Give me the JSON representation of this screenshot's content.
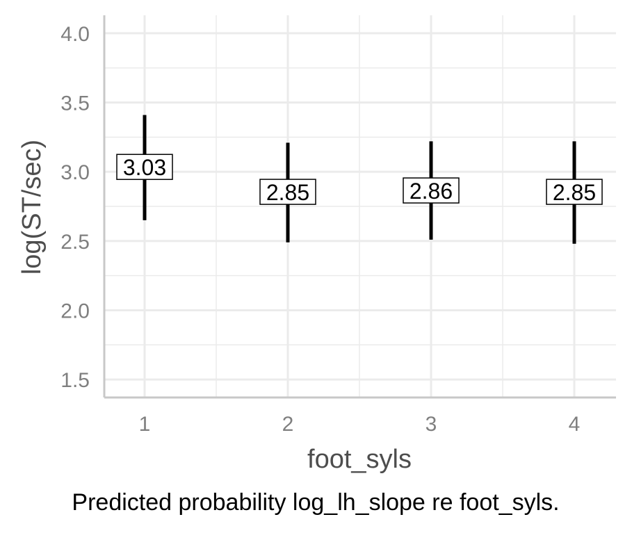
{
  "chart_data": {
    "type": "errorbar",
    "categories": [
      "1",
      "2",
      "3",
      "4"
    ],
    "values": [
      3.03,
      2.85,
      2.86,
      2.85
    ],
    "lower": [
      2.65,
      2.49,
      2.51,
      2.48
    ],
    "upper": [
      3.41,
      3.21,
      3.22,
      3.22
    ],
    "data_labels": [
      "3.03",
      "2.85",
      "2.86",
      "2.85"
    ],
    "xlabel": "foot_syls",
    "ylabel": "log(ST/sec)",
    "ylim": [
      1.37,
      4.13
    ],
    "yticks": [
      "1.5",
      "2.0",
      "2.5",
      "3.0",
      "3.5",
      "4.0"
    ],
    "grid": true,
    "caption": "Predicted probability log_lh_slope re foot_syls.",
    "colors": {
      "errorbar": "#000000",
      "grid": "#ebebeb",
      "axis": "#c8c8c8",
      "label_box_fill": "#ffffff",
      "label_box_stroke": "#000000"
    }
  }
}
